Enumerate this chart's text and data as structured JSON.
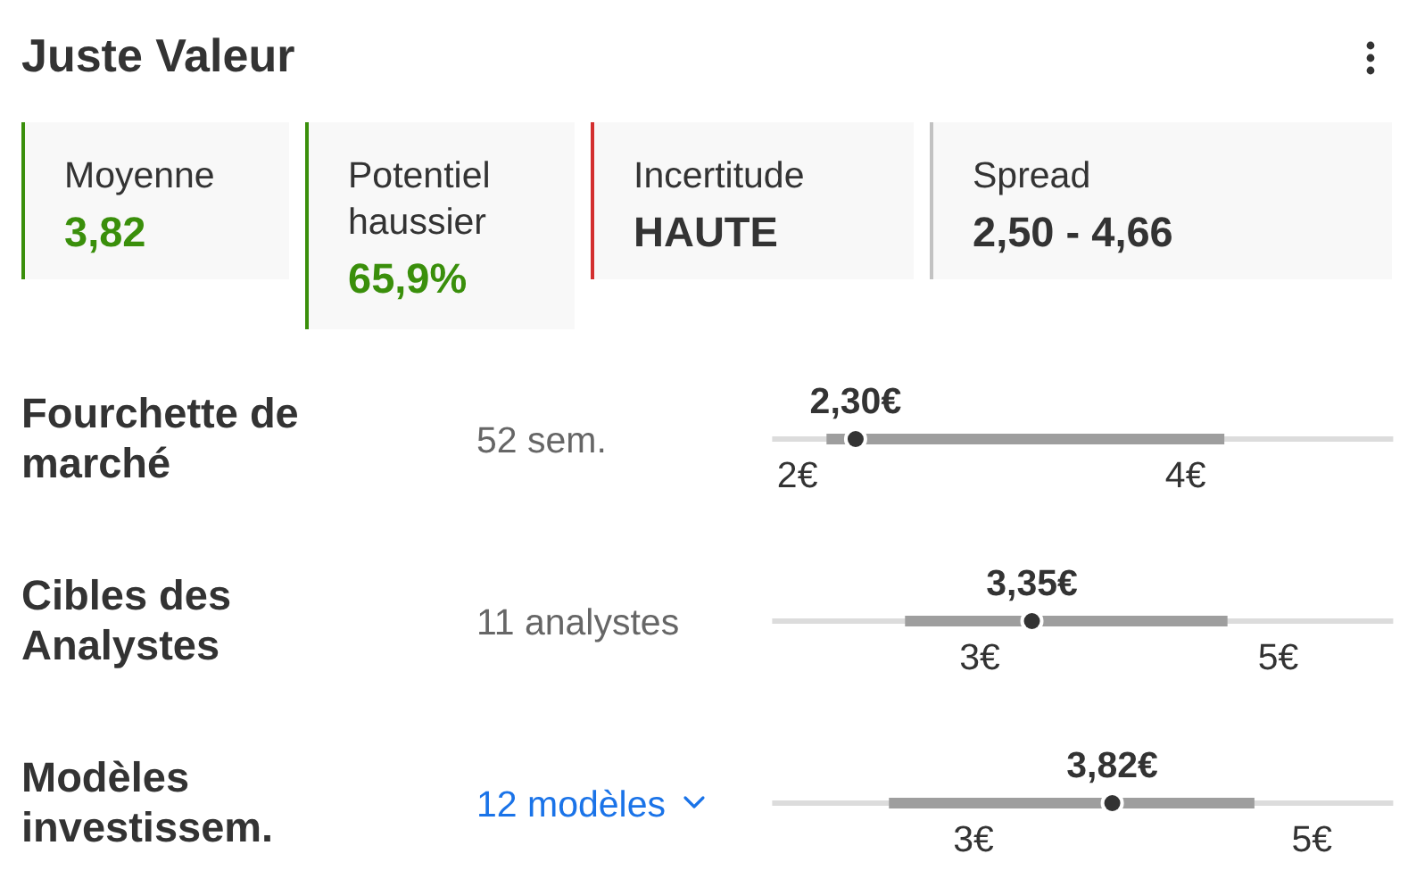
{
  "chart_data": [
    {
      "type": "other",
      "title": "Juste Valeur",
      "annotations": [
        "Moyenne",
        "3,82",
        "Potentiel haussier",
        "65,9%",
        "Incertitude",
        "HAUTE",
        "Spread",
        "2,50 - 4,66"
      ]
    },
    {
      "type": "bar",
      "ylabel": "Fourchette de marché",
      "orientation": "horizontal",
      "categories": [
        "52 sem."
      ],
      "xlim": [
        1.87,
        5.07
      ],
      "xticks": [
        {
          "value": 2,
          "label": "2€"
        },
        {
          "value": 4,
          "label": "4€"
        }
      ],
      "marker": "circle",
      "series": [
        {
          "type": "bar",
          "color": "#9e9e9e",
          "values": [
            2.05
          ],
          "base": [
            2.15
          ]
        },
        {
          "type": "scatter",
          "color": "#333333",
          "values": [
            2.3
          ],
          "value_labels": [
            "2,30€"
          ]
        }
      ]
    },
    {
      "type": "bar",
      "ylabel": "Cibles des Analystes",
      "orientation": "horizontal",
      "categories": [
        "11 analystes"
      ],
      "xlim": [
        1.61,
        5.77
      ],
      "xticks": [
        {
          "value": 3,
          "label": "3€"
        },
        {
          "value": 5,
          "label": "5€"
        }
      ],
      "marker": "circle",
      "series": [
        {
          "type": "bar",
          "color": "#9e9e9e",
          "values": [
            2.16
          ],
          "base": [
            2.5
          ]
        },
        {
          "type": "scatter",
          "color": "#333333",
          "values": [
            3.35
          ],
          "value_labels": [
            "3,35€"
          ]
        }
      ]
    },
    {
      "type": "bar",
      "ylabel": "Modèles investissem.",
      "orientation": "horizontal",
      "categories": [
        "12 modèles"
      ],
      "xlim": [
        1.81,
        5.48
      ],
      "xticks": [
        {
          "value": 3,
          "label": "3€"
        },
        {
          "value": 5,
          "label": "5€"
        }
      ],
      "marker": "circle",
      "series": [
        {
          "type": "bar",
          "color": "#9e9e9e",
          "values": [
            2.16
          ],
          "base": [
            2.5
          ]
        },
        {
          "type": "scatter",
          "color": "#333333",
          "values": [
            3.82
          ],
          "value_labels": [
            "3,82€"
          ]
        }
      ]
    }
  ]
}
